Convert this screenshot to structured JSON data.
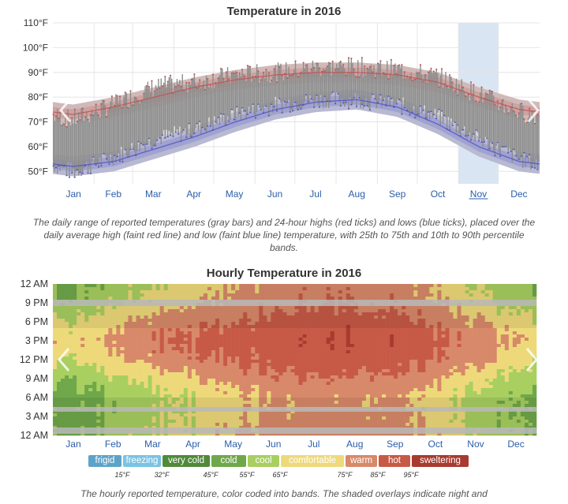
{
  "chart_data": [
    {
      "type": "area",
      "title": "Temperature in 2016",
      "caption": "The daily range of reported temperatures (gray bars) and 24-hour highs (red ticks) and lows (blue ticks), placed over the daily average high (faint red line) and low (faint blue line) temperature, with 25th to 75th and 10th to 90th percentile bands.",
      "xlabel": "",
      "ylabel": "",
      "x_tick_labels": [
        "Jan",
        "Feb",
        "Mar",
        "Apr",
        "May",
        "Jun",
        "Jul",
        "Aug",
        "Sep",
        "Oct",
        "Nov",
        "Dec"
      ],
      "y_tick_labels": [
        "50°F",
        "60°F",
        "70°F",
        "80°F",
        "90°F",
        "100°F",
        "110°F"
      ],
      "ylim": [
        45,
        110
      ],
      "highlighted_month": "Nov",
      "series": [
        {
          "name": "average high",
          "values": [
            73,
            76,
            80,
            84,
            87,
            89,
            90,
            90,
            89,
            86,
            80,
            75
          ]
        },
        {
          "name": "average low",
          "values": [
            52,
            54,
            59,
            64,
            70,
            75,
            78,
            79,
            76,
            69,
            60,
            54
          ]
        }
      ],
      "daily_range_mean": {
        "low": [
          50,
          56,
          63,
          67,
          73,
          77,
          79,
          79,
          77,
          72,
          63,
          55
        ],
        "high": [
          71,
          77,
          84,
          86,
          89,
          90,
          92,
          92,
          91,
          88,
          81,
          74
        ]
      },
      "colors": {
        "high": "#c0504d",
        "low": "#4e50c4",
        "bar": "#8c8c8c",
        "highlight": "#cddcef"
      }
    },
    {
      "type": "heatmap",
      "title": "Hourly Temperature in 2016",
      "caption": "The hourly reported temperature, color coded into bands. The shaded overlays indicate night and",
      "x_tick_labels": [
        "Jan",
        "Feb",
        "Mar",
        "Apr",
        "May",
        "Jun",
        "Jul",
        "Aug",
        "Sep",
        "Oct",
        "Nov",
        "Dec"
      ],
      "y_tick_labels": [
        "12 AM",
        "3 AM",
        "6 AM",
        "9 AM",
        "12 PM",
        "3 PM",
        "6 PM",
        "9 PM",
        "12 AM"
      ],
      "hour_profile": {
        "hours": [
          0,
          3,
          6,
          9,
          12,
          15,
          18,
          21
        ],
        "monthly_temps": [
          [
            52,
            51,
            50,
            57,
            66,
            71,
            66,
            58
          ],
          [
            58,
            56,
            55,
            62,
            72,
            77,
            72,
            63
          ],
          [
            65,
            63,
            62,
            69,
            79,
            84,
            79,
            70
          ],
          [
            69,
            67,
            66,
            73,
            83,
            87,
            82,
            74
          ],
          [
            75,
            73,
            72,
            79,
            87,
            90,
            85,
            79
          ],
          [
            79,
            77,
            76,
            82,
            89,
            91,
            88,
            82
          ],
          [
            81,
            79,
            78,
            84,
            91,
            93,
            90,
            84
          ],
          [
            81,
            79,
            78,
            84,
            91,
            93,
            90,
            84
          ],
          [
            79,
            77,
            76,
            82,
            89,
            92,
            88,
            82
          ],
          [
            74,
            72,
            70,
            77,
            86,
            89,
            84,
            77
          ],
          [
            64,
            62,
            61,
            68,
            78,
            82,
            76,
            68
          ],
          [
            55,
            54,
            53,
            60,
            69,
            74,
            69,
            60
          ]
        ]
      },
      "legend": [
        {
          "label": "frigid",
          "color": "#5da3c9"
        },
        {
          "label": "freezing",
          "color": "#79c3e3"
        },
        {
          "label": "very cold",
          "color": "#4f8a3a"
        },
        {
          "label": "cold",
          "color": "#6fa84a"
        },
        {
          "label": "cool",
          "color": "#a8cf60"
        },
        {
          "label": "comfortable",
          "color": "#eed97a"
        },
        {
          "label": "warm",
          "color": "#d8896a"
        },
        {
          "label": "hot",
          "color": "#c75a47"
        },
        {
          "label": "sweltering",
          "color": "#a83a30"
        }
      ],
      "thresholds": [
        "15°F",
        "32°F",
        "45°F",
        "55°F",
        "65°F",
        "75°F",
        "85°F",
        "95°F"
      ]
    }
  ]
}
